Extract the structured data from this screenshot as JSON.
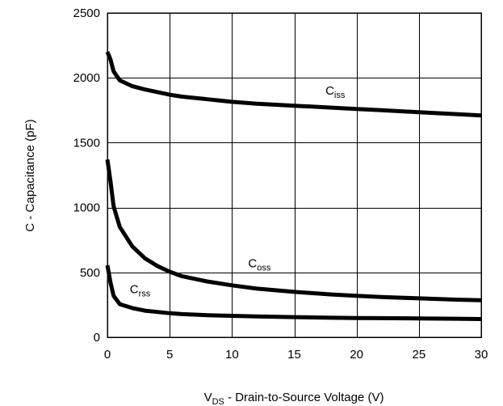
{
  "chart_data": {
    "type": "line",
    "title": "",
    "xlabel": {
      "main": "V",
      "sub": "DS",
      "rest": " - Drain-to-Source Voltage (V)"
    },
    "ylabel": "C - Capacitance (pF)",
    "xlim": [
      0,
      30
    ],
    "ylim": [
      0,
      2500
    ],
    "xticks": [
      0,
      5,
      10,
      15,
      20,
      25,
      30
    ],
    "yticks": [
      0,
      500,
      1000,
      1500,
      2000,
      2500
    ],
    "grid": true,
    "legend": "none",
    "series": [
      {
        "name": {
          "main": "C",
          "sub": "iss"
        },
        "label_at": [
          17.5,
          1870
        ],
        "x": [
          0,
          0.25,
          0.5,
          1,
          2,
          3,
          4,
          5,
          6,
          8,
          10,
          12,
          15,
          18,
          20,
          22,
          25,
          28,
          30
        ],
        "y": [
          2200,
          2140,
          2050,
          1980,
          1935,
          1910,
          1890,
          1870,
          1855,
          1835,
          1815,
          1800,
          1785,
          1770,
          1760,
          1750,
          1735,
          1720,
          1710
        ]
      },
      {
        "name": {
          "main": "C",
          "sub": "oss"
        },
        "label_at": [
          11.3,
          540
        ],
        "x": [
          0,
          0.25,
          0.5,
          1,
          2,
          3,
          4,
          5,
          6,
          8,
          10,
          12,
          15,
          18,
          20,
          22,
          25,
          28,
          30
        ],
        "y": [
          1370,
          1200,
          1010,
          850,
          700,
          610,
          550,
          505,
          470,
          430,
          400,
          375,
          350,
          330,
          320,
          310,
          300,
          290,
          285
        ]
      },
      {
        "name": {
          "main": "C",
          "sub": "rss"
        },
        "label_at": [
          1.8,
          340
        ],
        "x": [
          0,
          0.25,
          0.5,
          1,
          2,
          3,
          4,
          5,
          6,
          8,
          10,
          12,
          15,
          18,
          20,
          22,
          25,
          28,
          30
        ],
        "y": [
          555,
          420,
          320,
          255,
          225,
          205,
          195,
          185,
          178,
          170,
          165,
          160,
          155,
          150,
          148,
          147,
          145,
          143,
          140
        ]
      }
    ]
  }
}
